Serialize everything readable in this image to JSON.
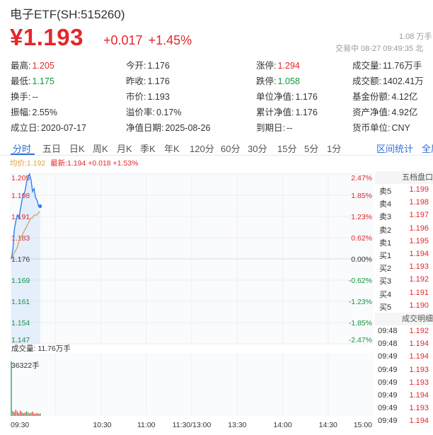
{
  "header": {
    "title": "电子ETF(SH:515260)",
    "price": "¥1.193",
    "change_abs": "+0.017",
    "change_pct": "+1.45%",
    "volume_top": "1.08 万手",
    "status_line": "交易中 08-27 09:49:35 北"
  },
  "stats": {
    "row1": [
      {
        "label": "最高:",
        "value": "1.205",
        "color": "red"
      },
      {
        "label": "今开:",
        "value": "1.176",
        "color": ""
      },
      {
        "label": "涨停:",
        "value": "1.294",
        "color": "red"
      },
      {
        "label": "成交量:",
        "value": "11.76万手",
        "color": ""
      }
    ],
    "row2": [
      {
        "label": "最低:",
        "value": "1.175",
        "color": "green"
      },
      {
        "label": "昨收:",
        "value": "1.176",
        "color": ""
      },
      {
        "label": "跌停:",
        "value": "1.058",
        "color": "green"
      },
      {
        "label": "成交额:",
        "value": "1402.41万",
        "color": ""
      }
    ],
    "row3": [
      {
        "label": "换手:",
        "value": "--",
        "color": ""
      },
      {
        "label": "市价:",
        "value": "1.193",
        "color": ""
      },
      {
        "label": "单位净值:",
        "value": "1.176",
        "color": ""
      },
      {
        "label": "基金份额:",
        "value": "4.12亿",
        "color": ""
      }
    ],
    "row4": [
      {
        "label": "振幅:",
        "value": "2.55%",
        "color": ""
      },
      {
        "label": "溢价率:",
        "value": "0.17%",
        "color": ""
      },
      {
        "label": "累计净值:",
        "value": "1.176",
        "color": ""
      },
      {
        "label": "资产净值:",
        "value": "4.92亿",
        "color": ""
      }
    ],
    "row5": [
      {
        "label": "成立日:",
        "value": "2020-07-17",
        "color": ""
      },
      {
        "label": "净值日期:",
        "value": "2025-08-26",
        "color": ""
      },
      {
        "label": "到期日:",
        "value": "--",
        "color": ""
      },
      {
        "label": "货币单位:",
        "value": "CNY",
        "color": ""
      }
    ]
  },
  "tabs": [
    "分时",
    "五日",
    "日K",
    "周K",
    "月K",
    "季K",
    "年K",
    "120分",
    "60分",
    "30分",
    "15分",
    "5分",
    "1分"
  ],
  "tabs_right": [
    "区间统计",
    "全屏"
  ],
  "legend": {
    "avg": "均价:1.192",
    "latest": "最新:1.194 +0.018 +1.53%"
  },
  "chart_data": {
    "type": "line",
    "y_price_labels": [
      "1.205",
      "1.198",
      "1.191",
      "1.183",
      "1.176",
      "1.169",
      "1.161",
      "1.154",
      "1.147"
    ],
    "y_pct_labels": [
      "2.47%",
      "1.85%",
      "1.23%",
      "0.62%",
      "0.00%",
      "-0.62%",
      "-1.23%",
      "-1.85%",
      "-2.47%"
    ],
    "x_labels": [
      "09:30",
      "10:30",
      "11:00",
      "11:30/13:00",
      "13:30",
      "14:00",
      "14:30",
      "15:00"
    ],
    "ylim": [
      1.147,
      1.205
    ],
    "price_series": [
      1.176,
      1.179,
      1.186,
      1.189,
      1.191,
      1.19,
      1.193,
      1.196,
      1.198,
      1.199,
      1.202,
      1.204,
      1.205,
      1.203,
      1.199,
      1.2,
      1.197,
      1.196,
      1.194,
      1.194
    ],
    "avg_series": [
      1.176,
      1.177,
      1.178,
      1.179,
      1.18,
      1.182,
      1.183,
      1.184,
      1.185,
      1.186,
      1.187,
      1.188,
      1.189,
      1.19,
      1.19,
      1.191,
      1.191,
      1.191,
      1.192,
      1.192
    ],
    "volume_label": "成交量: 11.76万手",
    "volume_max_label": "36322手",
    "volume_series": [
      36322,
      3200,
      2500,
      4100,
      2800,
      1900,
      3500,
      2600,
      1800,
      2200,
      3000,
      2400,
      1700,
      2100,
      2900,
      1600,
      1500,
      2000,
      1400,
      1800
    ]
  },
  "order_book": {
    "title": "五档盘口",
    "rows": [
      {
        "label": "卖5",
        "value": "1.199"
      },
      {
        "label": "卖4",
        "value": "1.198"
      },
      {
        "label": "卖3",
        "value": "1.197"
      },
      {
        "label": "卖2",
        "value": "1.196"
      },
      {
        "label": "卖1",
        "value": "1.195"
      },
      {
        "label": "买1",
        "value": "1.194"
      },
      {
        "label": "买2",
        "value": "1.193"
      },
      {
        "label": "买3",
        "value": "1.192"
      },
      {
        "label": "买4",
        "value": "1.191"
      },
      {
        "label": "买5",
        "value": "1.190"
      }
    ]
  },
  "deals": {
    "title": "成交明细",
    "rows": [
      {
        "time": "09:48",
        "value": "1.192"
      },
      {
        "time": "09:48",
        "value": "1.194"
      },
      {
        "time": "09:49",
        "value": "1.194"
      },
      {
        "time": "09:49",
        "value": "1.193"
      },
      {
        "time": "09:49",
        "value": "1.193"
      },
      {
        "time": "09:49",
        "value": "1.194"
      },
      {
        "time": "09:49",
        "value": "1.193"
      },
      {
        "time": "09:49",
        "value": "1.194"
      }
    ]
  }
}
